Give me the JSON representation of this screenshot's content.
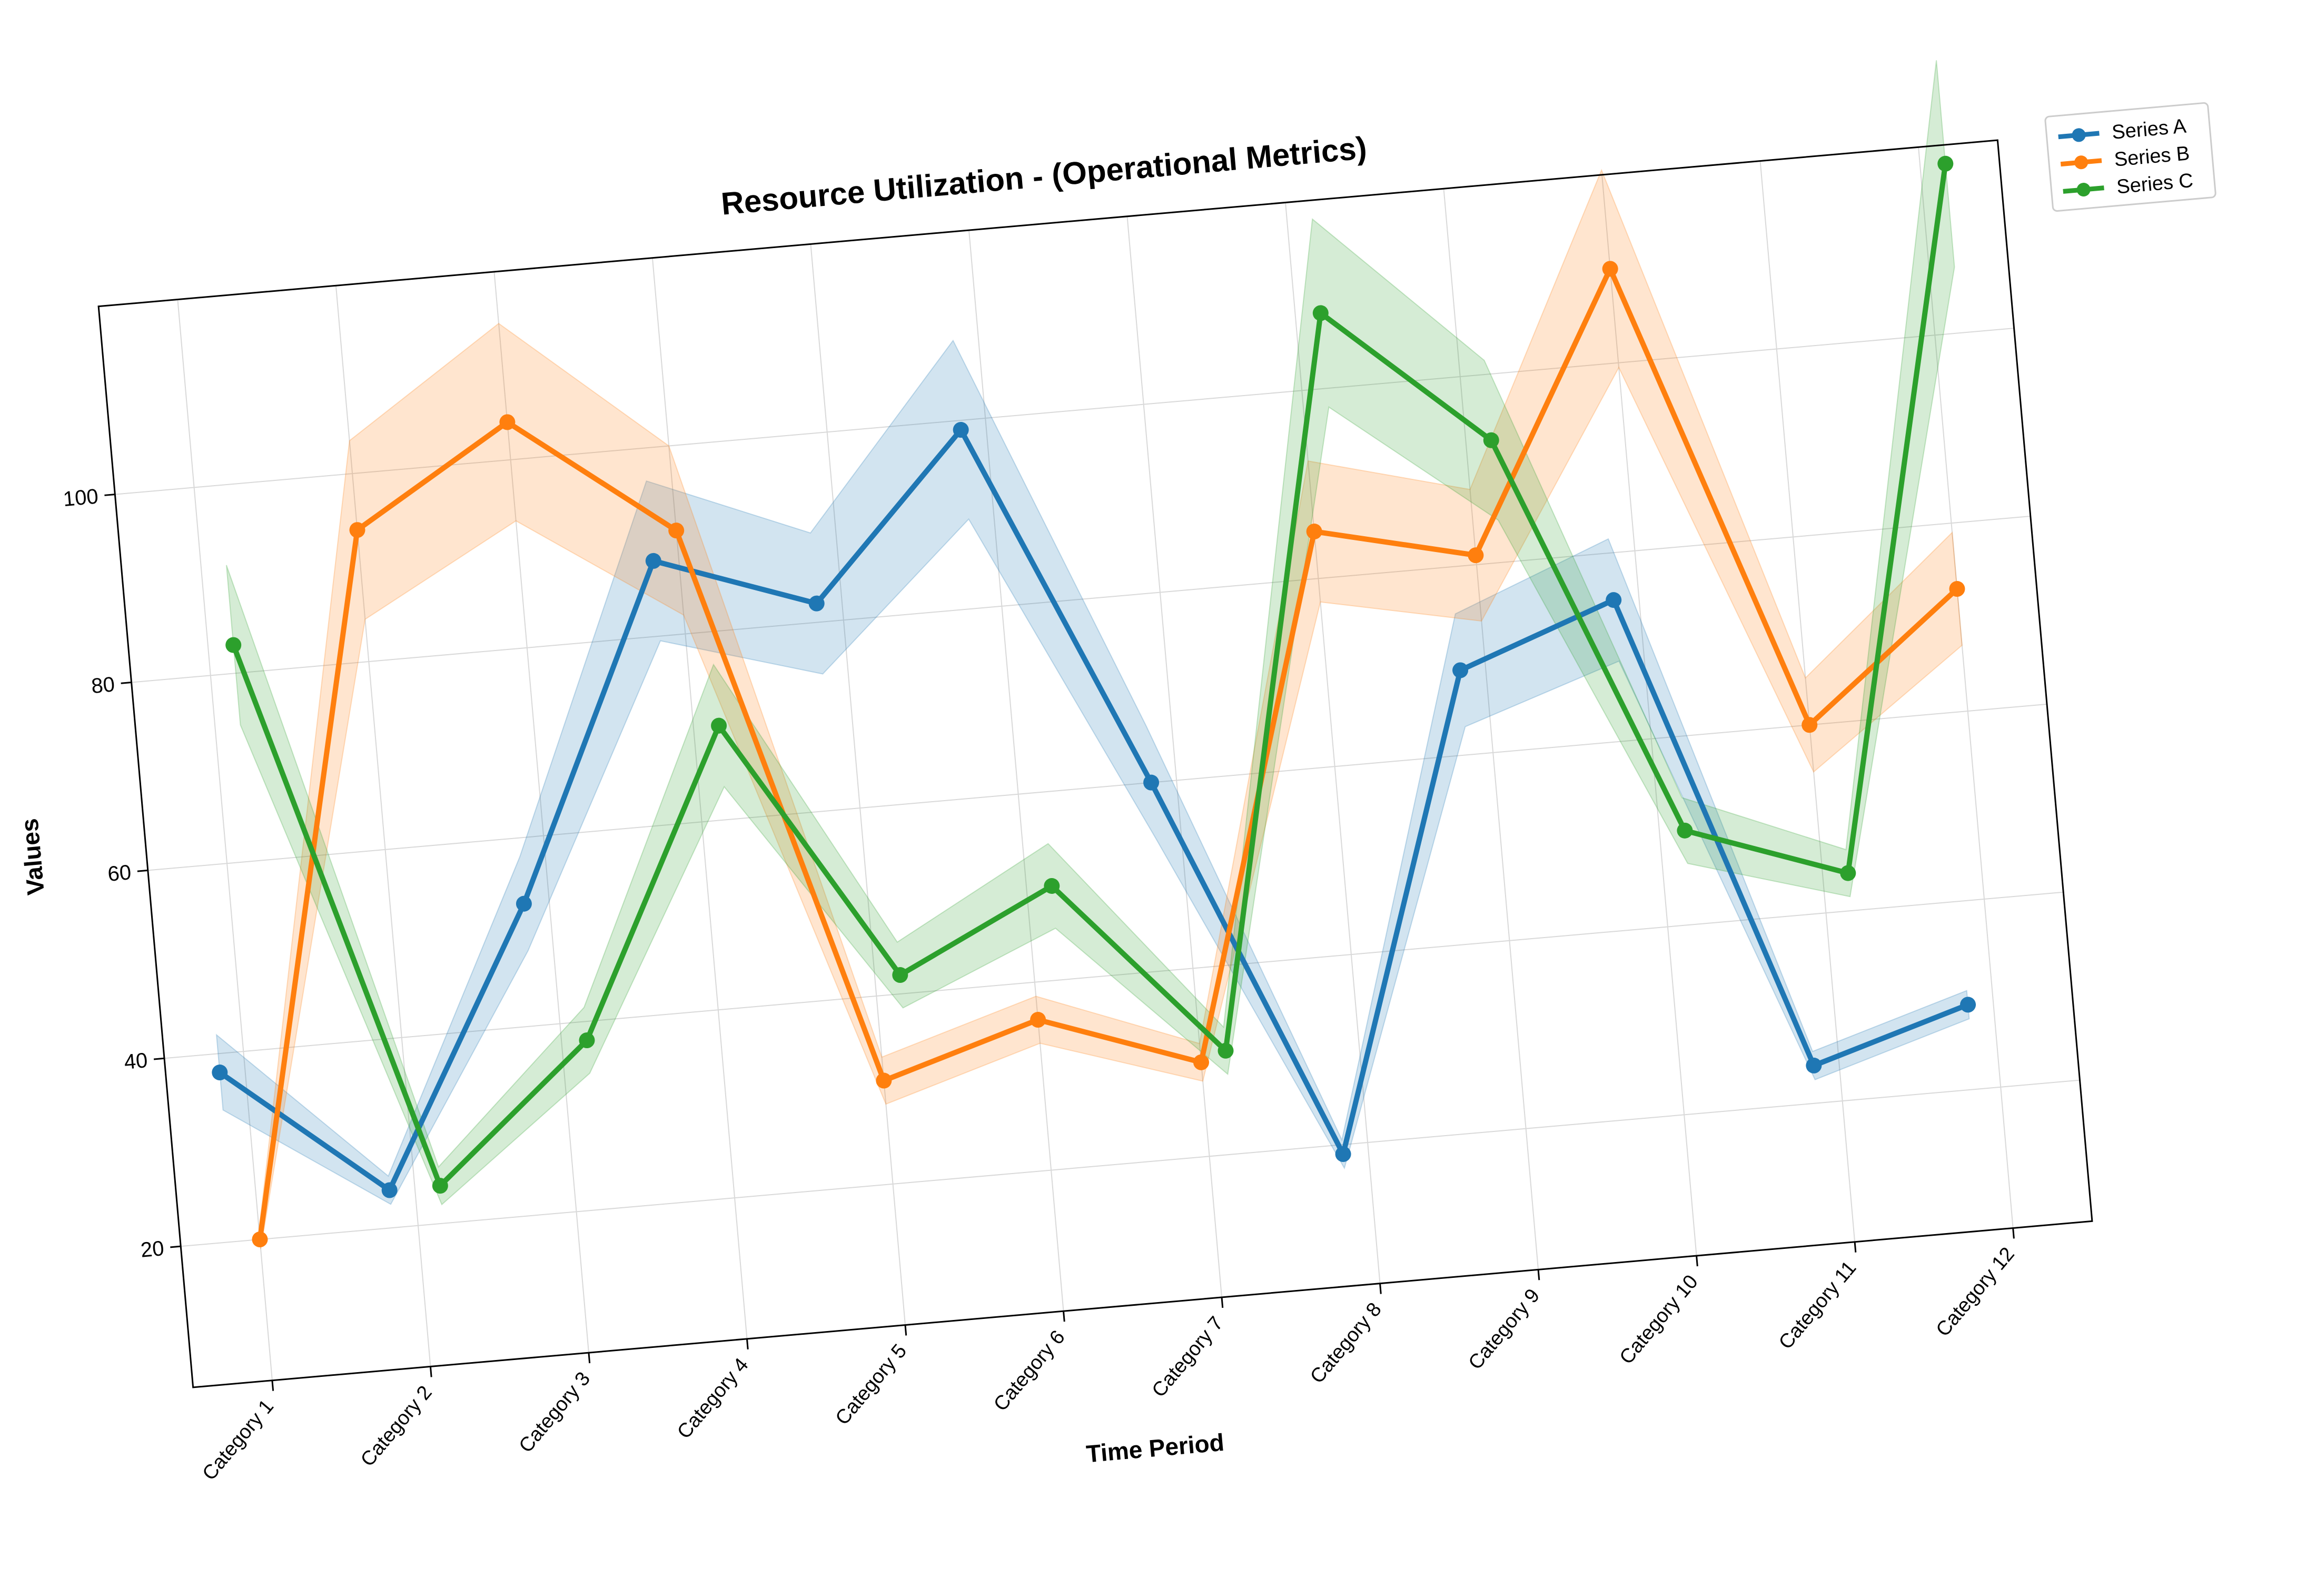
{
  "chart_data": {
    "type": "line",
    "title": "Resource Utilization - (Operational Metrics)",
    "xlabel": "Time Period",
    "ylabel": "Values",
    "categories": [
      "Category 1",
      "Category 2",
      "Category 3",
      "Category 4",
      "Category 5",
      "Category 6",
      "Category 7",
      "Category 8",
      "Category 9",
      "Category 10",
      "Category 11",
      "Category 12"
    ],
    "yticks": [
      20,
      40,
      60,
      80,
      100
    ],
    "ylim": [
      5,
      120
    ],
    "grid": true,
    "legend_position": "top-right",
    "series": [
      {
        "name": "Series A",
        "color": "#1f77b4",
        "values": [
          38,
          24,
          53,
          88,
          82,
          99,
          60,
          19,
          69,
          75,
          24,
          29
        ],
        "band": [
          4.0,
          1.5,
          5.0,
          8.5,
          7.5,
          9.5,
          6.0,
          1.5,
          6.0,
          6.5,
          1.5,
          1.5
        ]
      },
      {
        "name": "Series B",
        "color": "#ff7f0e",
        "values": [
          20,
          94,
          104,
          91,
          31,
          36,
          30,
          85,
          81,
          110,
          60,
          73
        ],
        "band": [
          1.0,
          9.5,
          10.5,
          9.0,
          2.5,
          2.5,
          2.0,
          7.5,
          7.0,
          10.5,
          5.0,
          6.0
        ]
      },
      {
        "name": "Series C",
        "color": "#2ca02c",
        "values": [
          83,
          24,
          38,
          70,
          42,
          50,
          31,
          108,
          93,
          50,
          44,
          118
        ],
        "band": [
          8.5,
          2.0,
          3.5,
          6.5,
          3.5,
          4.5,
          2.5,
          10.0,
          8.5,
          3.5,
          2.5,
          11.0
        ]
      }
    ]
  }
}
